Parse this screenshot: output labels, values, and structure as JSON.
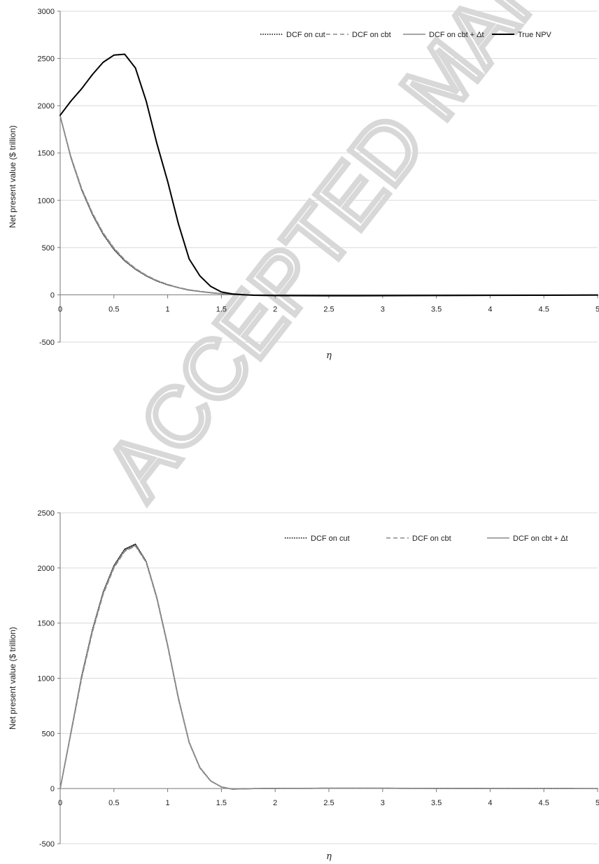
{
  "watermark": "ACCEPTED MANUSCRIPT",
  "chart_data": [
    {
      "type": "line",
      "title": "",
      "xlabel": "η",
      "ylabel": "Net present value ($ trillion)",
      "xlim": [
        0,
        5
      ],
      "ylim": [
        -500,
        3000
      ],
      "xticks": [
        "0",
        "0.5",
        "1",
        "1.5",
        "2",
        "2.5",
        "3",
        "3.5",
        "4",
        "4.5",
        "5"
      ],
      "yticks": [
        "-500",
        "0",
        "500",
        "1000",
        "1500",
        "2000",
        "2500",
        "3000"
      ],
      "grid": "horizontal",
      "legend": "top",
      "x": [
        0,
        0.1,
        0.2,
        0.3,
        0.4,
        0.5,
        0.6,
        0.7,
        0.8,
        0.9,
        1.0,
        1.1,
        1.2,
        1.3,
        1.4,
        1.5,
        1.6,
        1.7,
        1.8,
        2.0,
        2.5,
        3.0,
        3.5,
        4.0,
        4.5,
        5.0
      ],
      "series": [
        {
          "name": "DCF on cut",
          "style": "dotted",
          "color": "#000000",
          "values": [
            1890,
            1450,
            1110,
            850,
            640,
            480,
            360,
            270,
            200,
            145,
            105,
            75,
            50,
            35,
            22,
            12,
            5,
            0,
            -3,
            -7,
            -8,
            -7,
            -5,
            -4,
            -3,
            -2
          ]
        },
        {
          "name": "DCF on cbt",
          "style": "dashed",
          "color": "#8a8a8a",
          "values": [
            1890,
            1460,
            1125,
            865,
            655,
            495,
            372,
            280,
            208,
            152,
            110,
            78,
            53,
            37,
            24,
            13,
            6,
            1,
            -2,
            -6,
            -8,
            -7,
            -5,
            -4,
            -3,
            -2
          ]
        },
        {
          "name": "DCF on cbt + Δt",
          "style": "solid",
          "color": "#8a8a8a",
          "values": [
            1890,
            1455,
            1118,
            858,
            648,
            488,
            366,
            275,
            204,
            148,
            108,
            76,
            52,
            36,
            23,
            12,
            5,
            0,
            -3,
            -7,
            -8,
            -7,
            -5,
            -4,
            -3,
            -2
          ]
        },
        {
          "name": "True NPV",
          "style": "solid",
          "color": "#000000",
          "values": [
            1900,
            2050,
            2180,
            2330,
            2460,
            2535,
            2545,
            2400,
            2050,
            1600,
            1200,
            750,
            380,
            200,
            90,
            30,
            10,
            2,
            -4,
            -8,
            -10,
            -9,
            -7,
            -5,
            -4,
            -3
          ]
        }
      ]
    },
    {
      "type": "line",
      "title": "",
      "xlabel": "η",
      "ylabel": "Net present value ($ trillion)",
      "xlim": [
        0,
        5
      ],
      "ylim": [
        -500,
        2500
      ],
      "xticks": [
        "0",
        "0.5",
        "1",
        "1.5",
        "2",
        "2.5",
        "3",
        "3.5",
        "4",
        "4.5",
        "5"
      ],
      "yticks": [
        "-500",
        "0",
        "500",
        "1000",
        "1500",
        "2000",
        "2500"
      ],
      "grid": "horizontal",
      "legend": "top",
      "x": [
        0,
        0.1,
        0.2,
        0.3,
        0.4,
        0.5,
        0.6,
        0.7,
        0.8,
        0.9,
        1.0,
        1.1,
        1.2,
        1.3,
        1.4,
        1.5,
        1.6,
        1.7,
        1.8,
        2.0,
        2.5,
        3.0,
        3.5,
        4.0,
        4.5,
        5.0
      ],
      "series": [
        {
          "name": "DCF on cut",
          "style": "dotted",
          "color": "#000000",
          "values": [
            0,
            510,
            1020,
            1440,
            1780,
            2020,
            2170,
            2215,
            2060,
            1730,
            1300,
            820,
            420,
            190,
            70,
            15,
            -5,
            -3,
            0,
            2,
            3,
            3,
            2,
            1,
            1,
            0
          ]
        },
        {
          "name": "DCF on cbt",
          "style": "dashed",
          "color": "#8a8a8a",
          "values": [
            0,
            500,
            1000,
            1420,
            1760,
            2000,
            2150,
            2200,
            2050,
            1720,
            1290,
            810,
            415,
            185,
            68,
            14,
            -5,
            -3,
            0,
            2,
            3,
            3,
            2,
            1,
            1,
            0
          ]
        },
        {
          "name": "DCF on cbt + Δt",
          "style": "solid",
          "color": "#8a8a8a",
          "values": [
            0,
            505,
            1010,
            1430,
            1770,
            2010,
            2160,
            2205,
            2055,
            1725,
            1295,
            815,
            418,
            188,
            69,
            15,
            -5,
            -3,
            0,
            2,
            3,
            3,
            2,
            1,
            1,
            0
          ]
        }
      ]
    }
  ]
}
